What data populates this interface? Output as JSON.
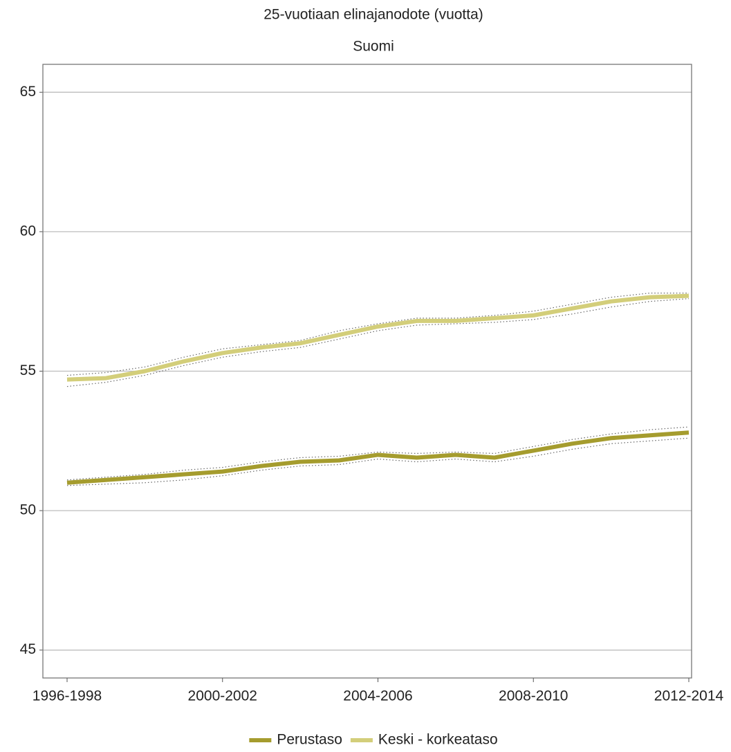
{
  "chart_data": {
    "type": "line",
    "title": "25-vuotiaan elinajanodote (vuotta)",
    "subtitle": "Suomi",
    "categories": [
      "1996-1998",
      null,
      null,
      null,
      "2000-2002",
      null,
      null,
      null,
      "2004-2006",
      null,
      null,
      null,
      "2008-2010",
      null,
      null,
      null,
      "2012-2014"
    ],
    "series": [
      {
        "name": "Perustaso",
        "color": "#a59c2e",
        "values": [
          51.0,
          51.1,
          51.2,
          51.3,
          51.4,
          51.6,
          51.75,
          51.8,
          52.0,
          51.9,
          52.0,
          51.9,
          52.15,
          52.4,
          52.6,
          52.7,
          52.8
        ],
        "lower": [
          50.9,
          50.95,
          51.0,
          51.1,
          51.25,
          51.45,
          51.6,
          51.65,
          51.85,
          51.75,
          51.85,
          51.75,
          51.95,
          52.2,
          52.4,
          52.5,
          52.6
        ],
        "upper": [
          51.1,
          51.2,
          51.3,
          51.45,
          51.55,
          51.75,
          51.9,
          51.95,
          52.1,
          52.05,
          52.1,
          52.05,
          52.3,
          52.55,
          52.75,
          52.9,
          53.0
        ]
      },
      {
        "name": "Keski - korkeataso",
        "color": "#d3ce7a",
        "values": [
          54.7,
          54.75,
          55.0,
          55.35,
          55.65,
          55.85,
          56.0,
          56.3,
          56.6,
          56.8,
          56.8,
          56.9,
          57.0,
          57.25,
          57.5,
          57.65,
          57.7
        ],
        "lower": [
          54.45,
          54.6,
          54.85,
          55.2,
          55.5,
          55.7,
          55.85,
          56.15,
          56.45,
          56.65,
          56.7,
          56.75,
          56.85,
          57.05,
          57.3,
          57.5,
          57.6
        ],
        "upper": [
          54.85,
          54.95,
          55.15,
          55.5,
          55.8,
          55.95,
          56.1,
          56.45,
          56.7,
          56.9,
          56.9,
          57.0,
          57.15,
          57.4,
          57.65,
          57.8,
          57.8
        ]
      }
    ],
    "ylim": [
      44,
      66
    ],
    "yticks": [
      45,
      50,
      55,
      60,
      65
    ],
    "grid": true,
    "legend": "bottom"
  }
}
